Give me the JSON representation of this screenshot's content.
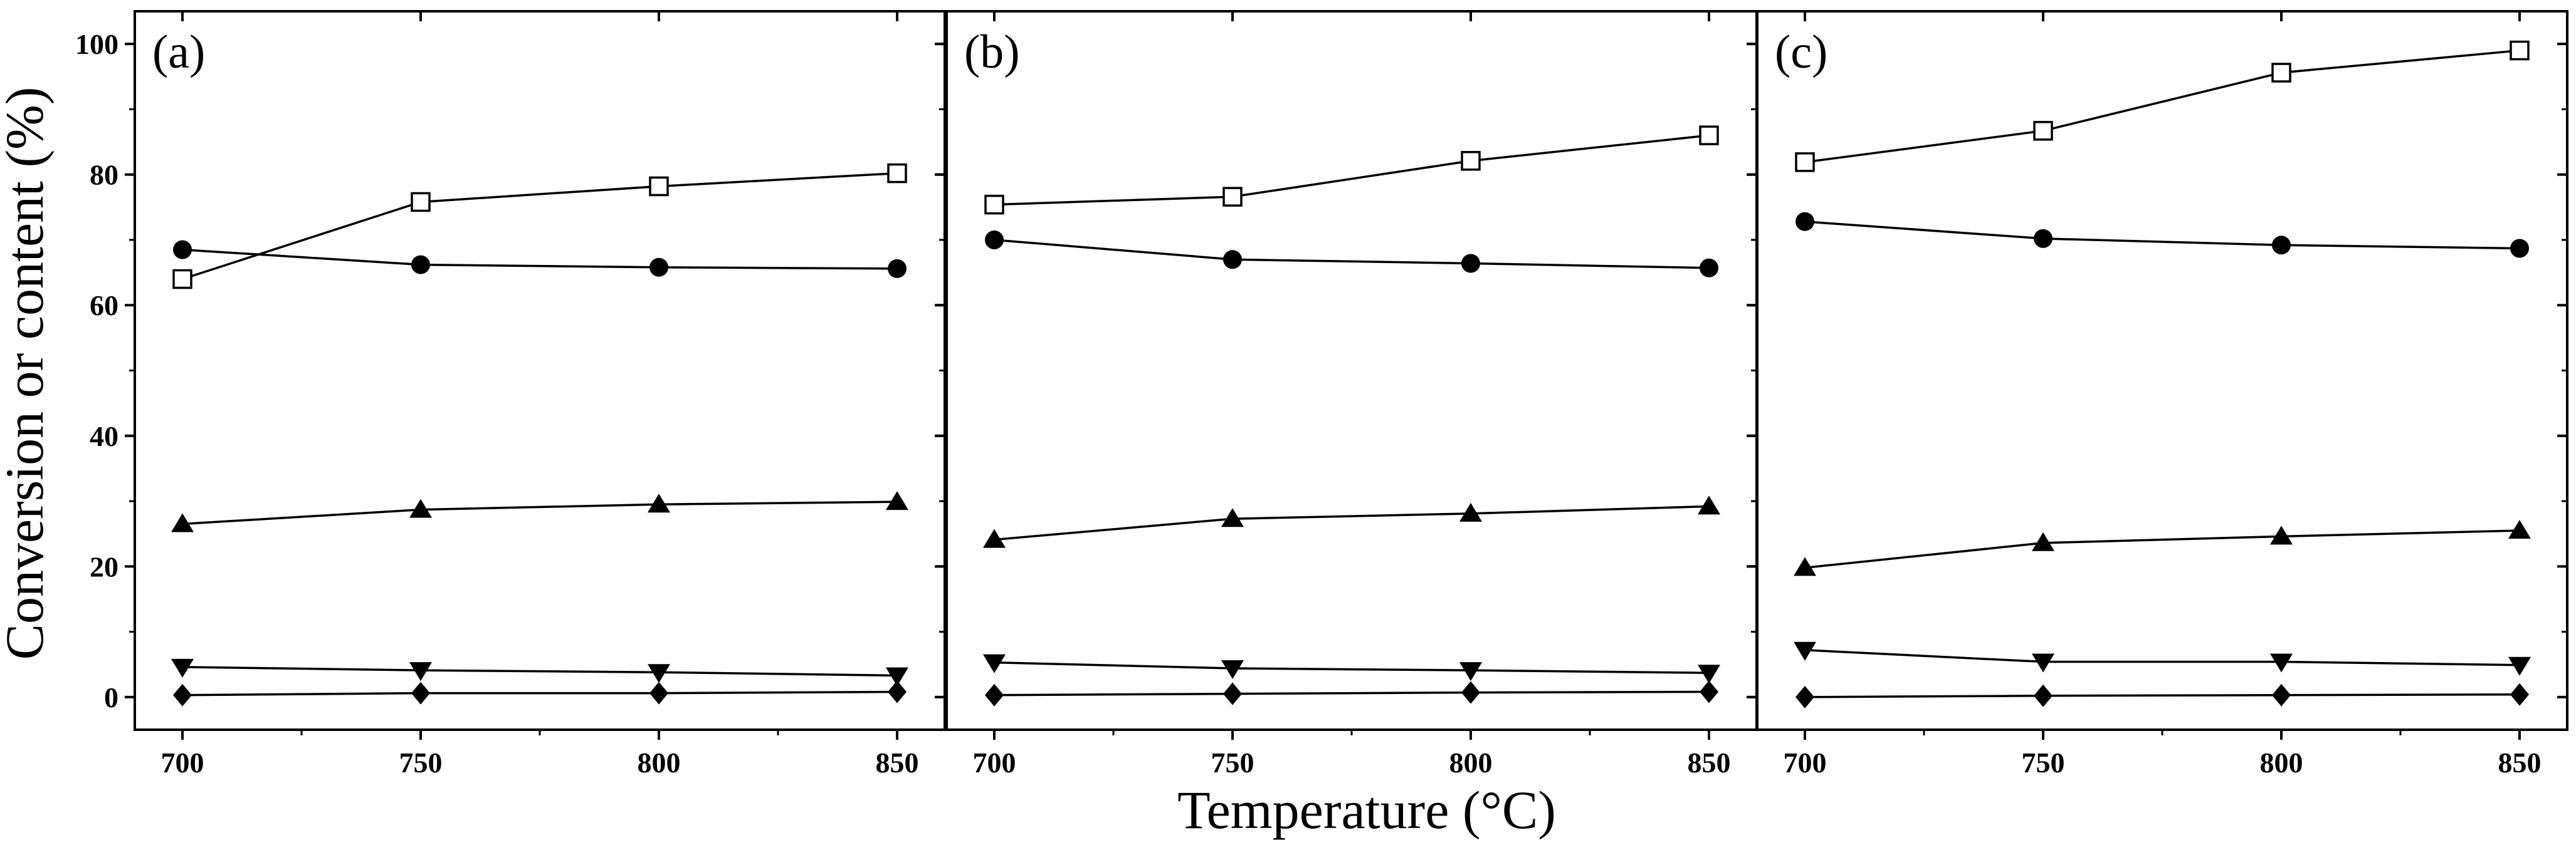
{
  "chart_data": {
    "type": "line",
    "xlabel": "Temperature (°C)",
    "ylabel": "Conversion or content (%)",
    "xlim": [
      690,
      860
    ],
    "ylim": [
      -5,
      105
    ],
    "x_ticks": [
      700,
      750,
      800,
      850
    ],
    "y_ticks": [
      0,
      20,
      40,
      60,
      80,
      100
    ],
    "series_markers": [
      "open-square",
      "filled-circle",
      "filled-triangle-up",
      "filled-triangle-down",
      "filled-diamond"
    ],
    "panels": [
      {
        "label": "(a)",
        "x": [
          700,
          750,
          800,
          850
        ],
        "series": [
          {
            "marker": "open-square",
            "values": [
              64.0,
              75.8,
              78.2,
              80.2
            ]
          },
          {
            "marker": "filled-circle",
            "values": [
              68.5,
              66.2,
              65.8,
              65.6
            ]
          },
          {
            "marker": "filled-triangle-up",
            "values": [
              26.5,
              28.7,
              29.5,
              29.9
            ]
          },
          {
            "marker": "filled-triangle-down",
            "values": [
              4.6,
              4.1,
              3.8,
              3.3
            ]
          },
          {
            "marker": "filled-diamond",
            "values": [
              0.3,
              0.6,
              0.6,
              0.8
            ]
          }
        ]
      },
      {
        "label": "(b)",
        "x": [
          700,
          750,
          800,
          850
        ],
        "series": [
          {
            "marker": "open-square",
            "values": [
              75.4,
              76.6,
              82.1,
              86.0
            ]
          },
          {
            "marker": "filled-circle",
            "values": [
              70.0,
              67.0,
              66.4,
              65.7
            ]
          },
          {
            "marker": "filled-triangle-up",
            "values": [
              24.1,
              27.3,
              28.1,
              29.2
            ]
          },
          {
            "marker": "filled-triangle-down",
            "values": [
              5.3,
              4.4,
              4.1,
              3.7
            ]
          },
          {
            "marker": "filled-diamond",
            "values": [
              0.3,
              0.5,
              0.7,
              0.8
            ]
          }
        ]
      },
      {
        "label": "(c)",
        "x": [
          700,
          750,
          800,
          850
        ],
        "series": [
          {
            "marker": "open-square",
            "values": [
              81.9,
              86.7,
              95.6,
              99.0
            ]
          },
          {
            "marker": "filled-circle",
            "values": [
              72.8,
              70.2,
              69.2,
              68.7
            ]
          },
          {
            "marker": "filled-triangle-up",
            "values": [
              19.8,
              23.6,
              24.6,
              25.5
            ]
          },
          {
            "marker": "filled-triangle-down",
            "values": [
              7.2,
              5.4,
              5.4,
              4.9
            ]
          },
          {
            "marker": "filled-diamond",
            "values": [
              0.0,
              0.2,
              0.3,
              0.4
            ]
          }
        ]
      }
    ]
  }
}
